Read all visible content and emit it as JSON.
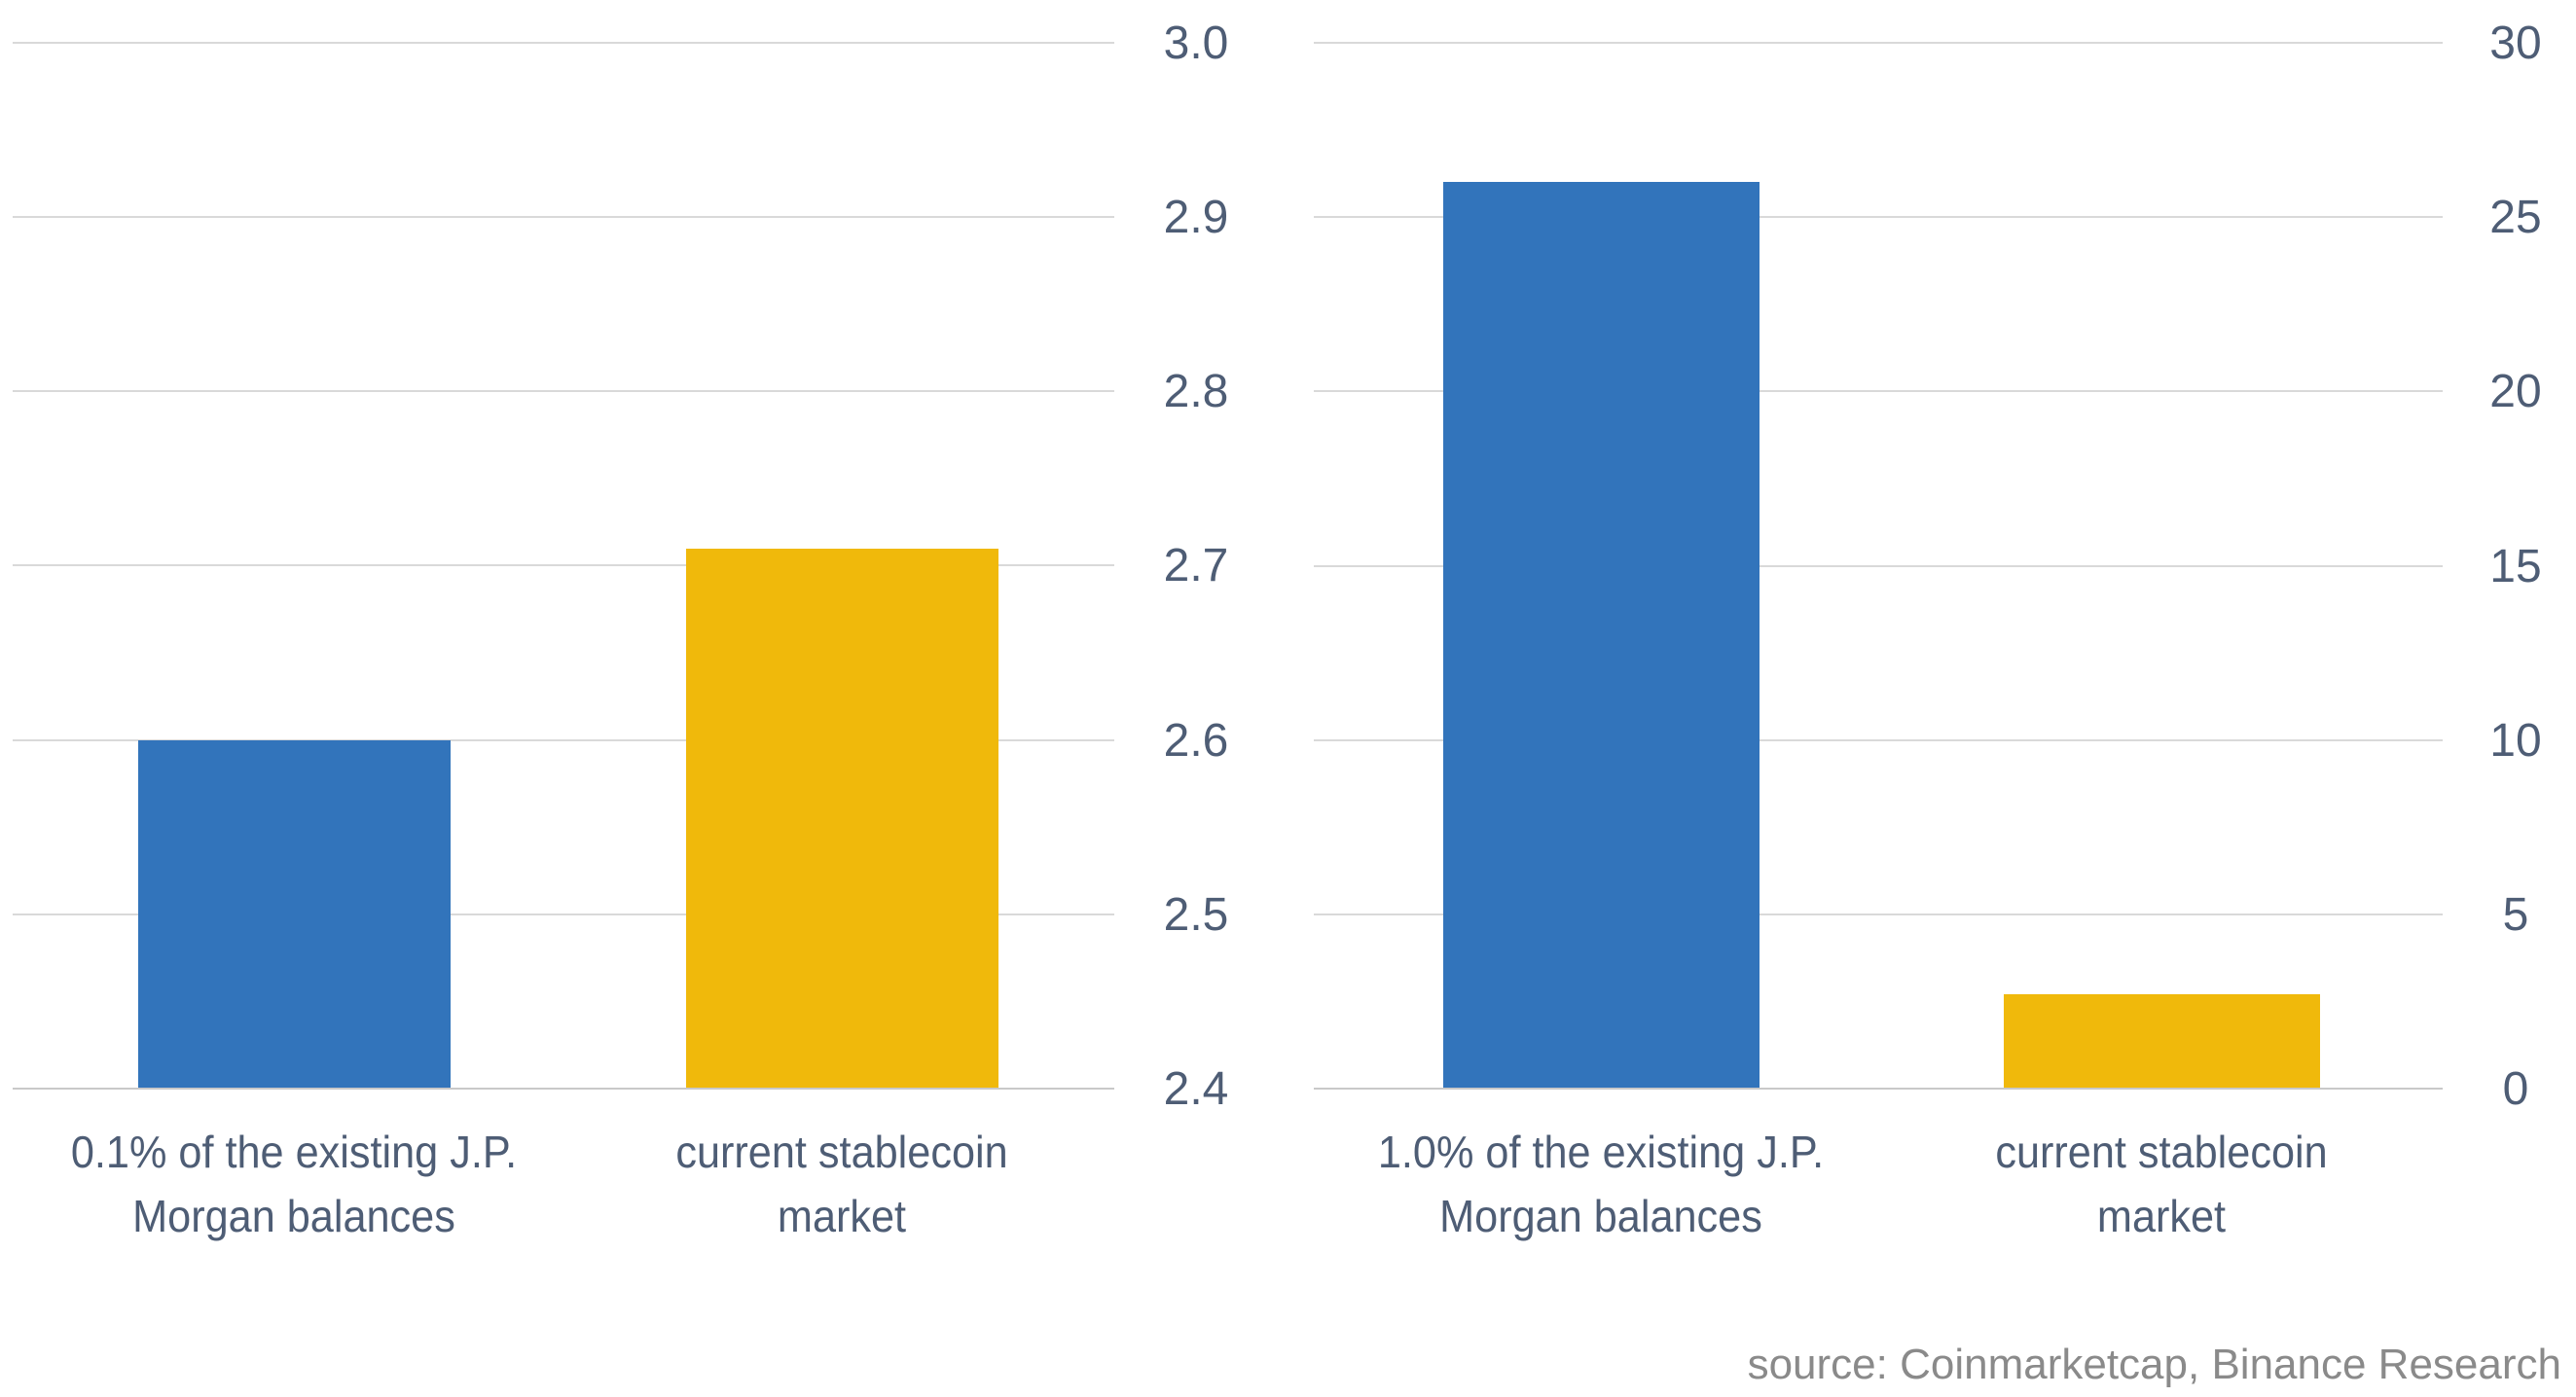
{
  "figure": {
    "source_note": "source: Coinmarketcap, Binance Research"
  },
  "colors": {
    "bar_blue": "#3274BB",
    "bar_yellow": "#F0B90B",
    "tick_text": "#4E5D75",
    "category_text": "#4E5D75",
    "gridline": "#D9D9D9",
    "axis_line": "#C9C9C9",
    "source_text": "#8A8A8A",
    "background": "#FFFFFF"
  },
  "chart_data": [
    {
      "type": "bar",
      "title": "",
      "xlabel": "",
      "ylabel": "",
      "categories": [
        "0.1% of the existing J.P. Morgan balances",
        "current stablecoin market"
      ],
      "category_lines": [
        [
          "0.1% of the existing J.P.",
          "Morgan balances"
        ],
        [
          "current stablecoin",
          "market"
        ]
      ],
      "values": [
        2.6,
        2.71
      ],
      "bar_colors": [
        "#3274BB",
        "#F0B90B"
      ],
      "ylim": [
        2.4,
        3.0
      ],
      "ytick_step": 0.1,
      "ytick_labels": [
        "3.0",
        "2.9",
        "2.8",
        "2.7",
        "2.6",
        "2.5",
        "2.4"
      ],
      "tick_decimals": 1,
      "y_axis_side": "right",
      "grid": true,
      "legend": "none"
    },
    {
      "type": "bar",
      "title": "",
      "xlabel": "",
      "ylabel": "",
      "categories": [
        "1.0% of the existing J.P. Morgan balances",
        "current stablecoin market"
      ],
      "category_lines": [
        [
          "1.0% of the existing J.P.",
          "Morgan balances"
        ],
        [
          "current stablecoin",
          "market"
        ]
      ],
      "values": [
        26,
        2.7
      ],
      "bar_colors": [
        "#3274BB",
        "#F0B90B"
      ],
      "ylim": [
        0,
        30
      ],
      "ytick_step": 5,
      "ytick_labels": [
        "30",
        "25",
        "20",
        "15",
        "10",
        "5",
        "0"
      ],
      "tick_decimals": 0,
      "y_axis_side": "right",
      "grid": true,
      "legend": "none"
    }
  ]
}
